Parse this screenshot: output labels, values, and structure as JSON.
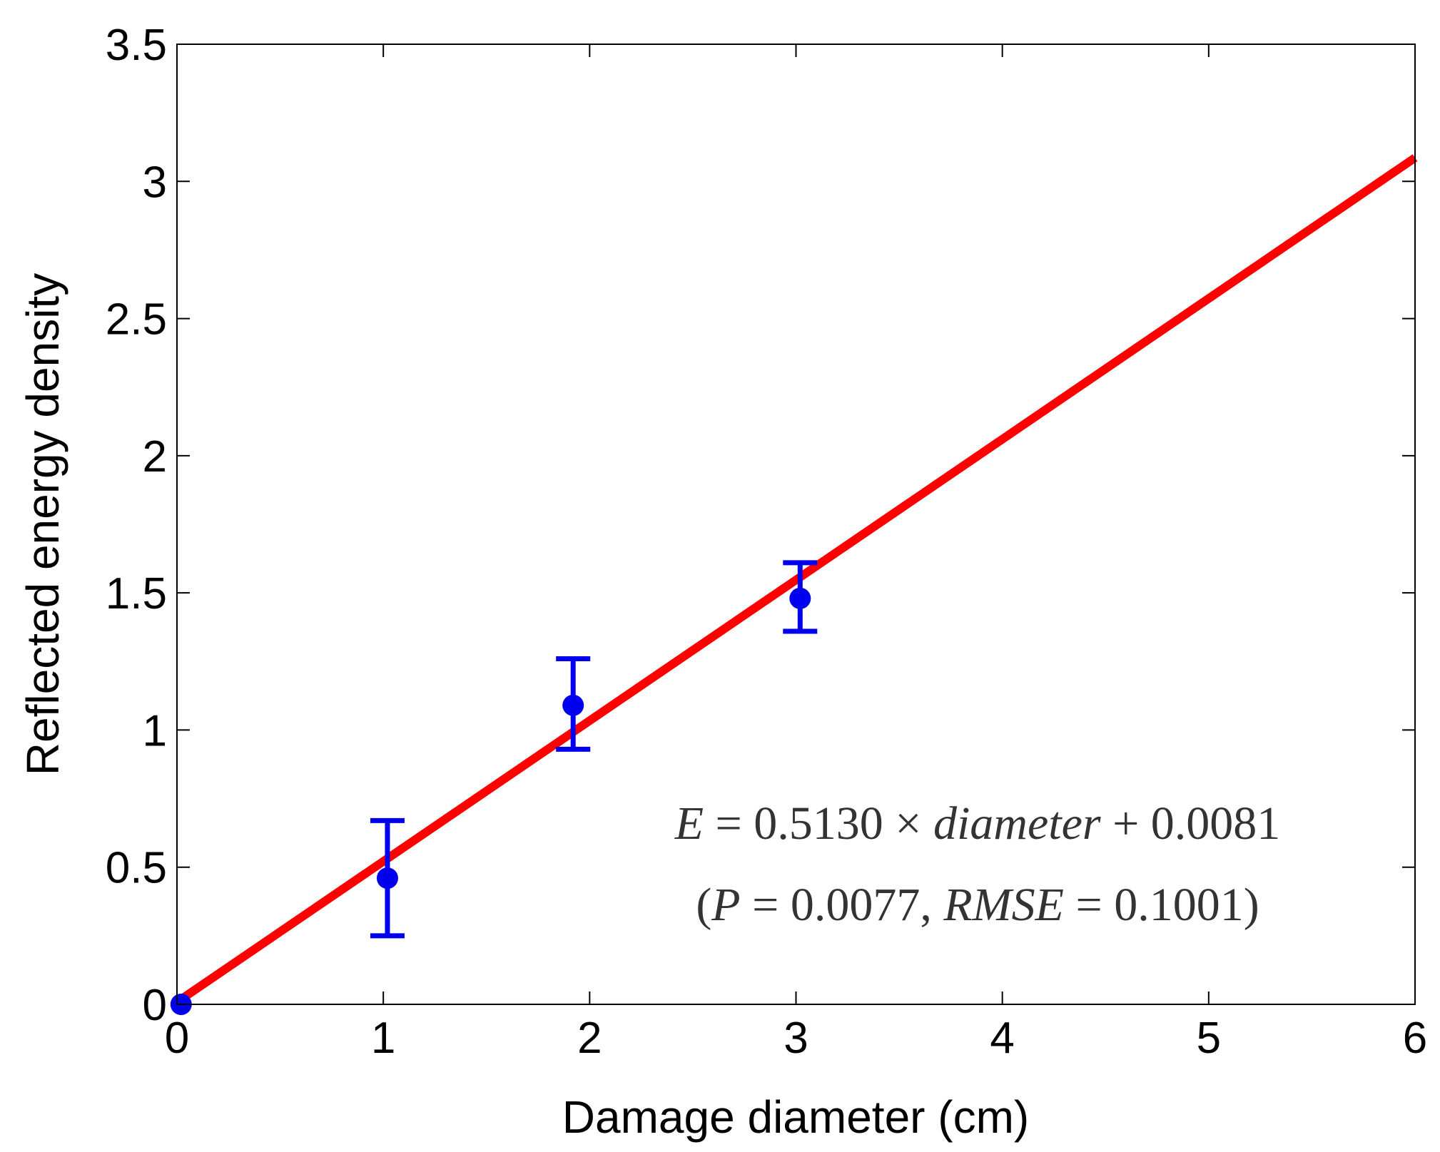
{
  "chart_data": {
    "type": "scatter",
    "xlabel": "Damage diameter (cm)",
    "ylabel": "Reflected energy density",
    "xlim": [
      0,
      6
    ],
    "ylim": [
      0,
      3.5
    ],
    "x_ticks": [
      "0",
      "1",
      "2",
      "3",
      "4",
      "5",
      "6"
    ],
    "y_ticks": [
      "0",
      "0.5",
      "1",
      "1.5",
      "2",
      "2.5",
      "3",
      "3.5"
    ],
    "grid": false,
    "colors": {
      "points": "#0000ee",
      "fit_line": "#ff0000"
    },
    "points": [
      {
        "x": 0.02,
        "y": 0.0,
        "err_low": null,
        "err_high": null
      },
      {
        "x": 1.02,
        "y": 0.46,
        "err_low": 0.25,
        "err_high": 0.67
      },
      {
        "x": 1.92,
        "y": 1.09,
        "err_low": 0.93,
        "err_high": 1.26
      },
      {
        "x": 3.02,
        "y": 1.48,
        "err_low": 1.36,
        "err_high": 1.61
      }
    ],
    "fit": {
      "slope": 0.513,
      "intercept": 0.0081,
      "x_range": [
        0,
        6
      ]
    },
    "annotations": {
      "equation": "E = 0.5130 × diameter + 0.0081",
      "stats": "(P = 0.0077, RMSE = 0.1001)"
    }
  }
}
